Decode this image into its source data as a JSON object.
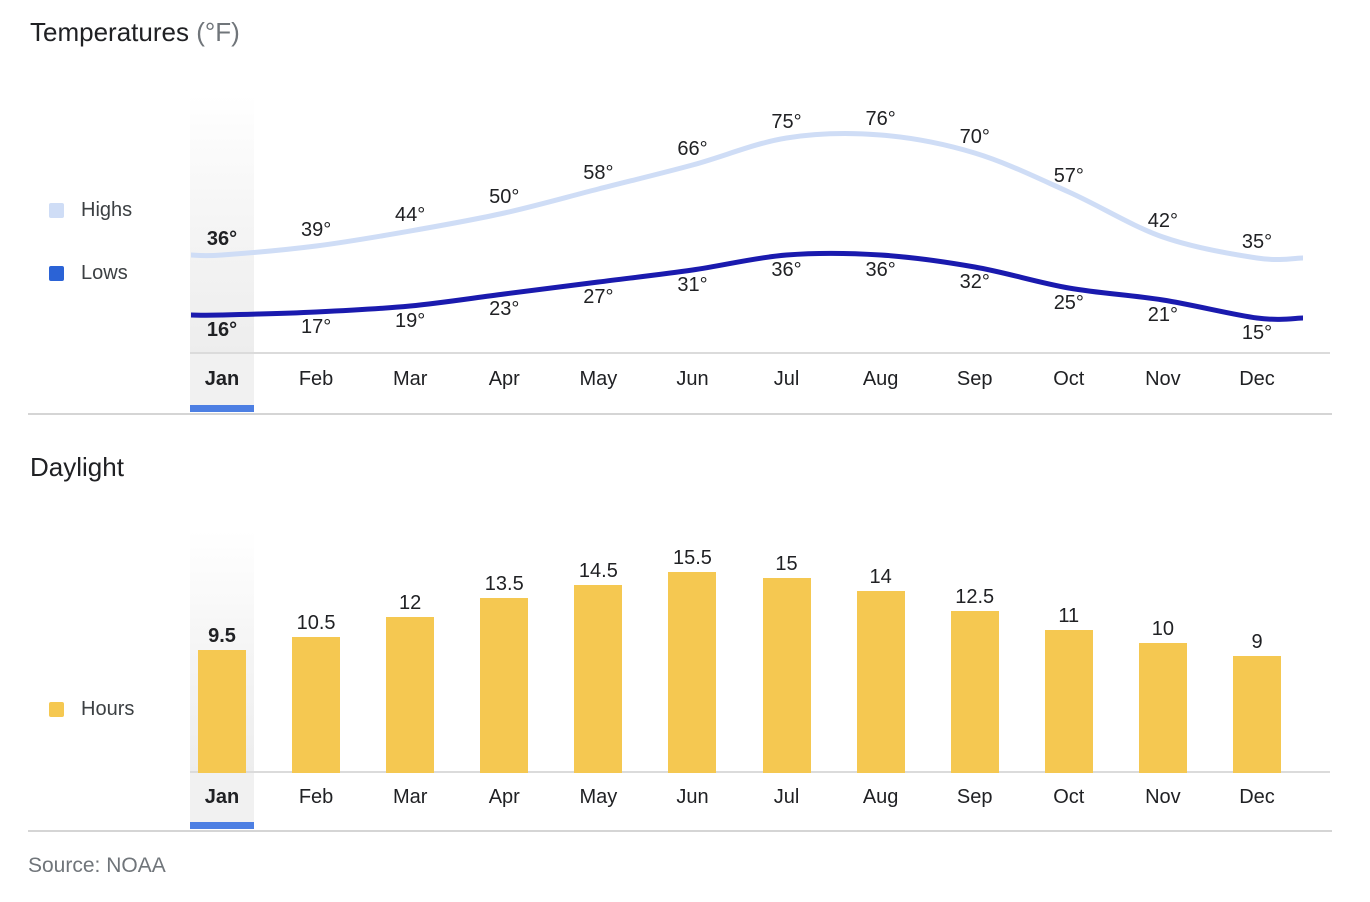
{
  "accent": {
    "selected_underline_color": "#4d7fe3",
    "selected_column_bg": "#f1f1f1",
    "axis_line_color": "#dbdbdb",
    "divider_color": "#d5d5d5",
    "title_color": "#202124",
    "muted_text_color": "#70757a",
    "legend_text_color": "#3c4043"
  },
  "source": {
    "label": "Source: NOAA"
  },
  "chart_data": [
    {
      "type": "line",
      "title": "Temperatures",
      "title_unit": "(°F)",
      "categories": [
        "Jan",
        "Feb",
        "Mar",
        "Apr",
        "May",
        "Jun",
        "Jul",
        "Aug",
        "Sep",
        "Oct",
        "Nov",
        "Dec"
      ],
      "selected_category": "Jan",
      "selected_index": 0,
      "value_suffix": "°",
      "grid": false,
      "legend_position": "left",
      "series": [
        {
          "name": "Highs",
          "color": "#cfddf6",
          "legend_color": "#cfddf6",
          "values": [
            36,
            39,
            44,
            50,
            58,
            66,
            75,
            76,
            70,
            57,
            42,
            35
          ]
        },
        {
          "name": "Lows",
          "color": "#1a1aae",
          "legend_color": "#2b63d6",
          "values": [
            16,
            17,
            19,
            23,
            27,
            31,
            36,
            36,
            32,
            25,
            21,
            15
          ]
        }
      ]
    },
    {
      "type": "bar",
      "title": "Daylight",
      "categories": [
        "Jan",
        "Feb",
        "Mar",
        "Apr",
        "May",
        "Jun",
        "Jul",
        "Aug",
        "Sep",
        "Oct",
        "Nov",
        "Dec"
      ],
      "selected_category": "Jan",
      "selected_index": 0,
      "value_suffix": "",
      "grid": false,
      "legend_position": "left",
      "series": [
        {
          "name": "Hours",
          "color": "#f5c851",
          "legend_color": "#f5c851",
          "values": [
            9.5,
            10.5,
            12,
            13.5,
            14.5,
            15.5,
            15,
            14,
            12.5,
            11,
            10,
            9
          ]
        }
      ]
    }
  ]
}
